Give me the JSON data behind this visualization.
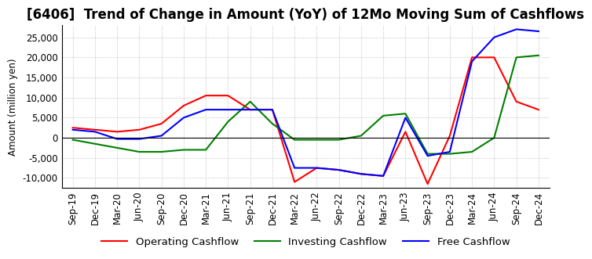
{
  "title": "[6406]  Trend of Change in Amount (YoY) of 12Mo Moving Sum of Cashflows",
  "ylabel": "Amount (million yen)",
  "x_labels": [
    "Sep-19",
    "Dec-19",
    "Mar-20",
    "Jun-20",
    "Sep-20",
    "Dec-20",
    "Mar-21",
    "Jun-21",
    "Sep-21",
    "Dec-21",
    "Mar-22",
    "Jun-22",
    "Sep-22",
    "Dec-22",
    "Mar-23",
    "Jun-23",
    "Sep-23",
    "Dec-23",
    "Mar-24",
    "Jun-24",
    "Sep-24",
    "Dec-24"
  ],
  "operating": [
    2500,
    2000,
    1500,
    2000,
    3500,
    8000,
    10500,
    10500,
    7000,
    7000,
    -11000,
    -7500,
    -8000,
    -9000,
    -9500,
    1500,
    -11500,
    500,
    20000,
    20000,
    9000,
    7000
  ],
  "investing": [
    -500,
    -1500,
    -2500,
    -3500,
    -3500,
    -3000,
    -3000,
    4000,
    9000,
    3500,
    -500,
    -500,
    -500,
    500,
    5500,
    6000,
    -4000,
    -4000,
    -3500,
    0,
    20000,
    20500
  ],
  "free": [
    2000,
    1500,
    -300,
    -300,
    500,
    5000,
    7000,
    7000,
    7000,
    7000,
    -7500,
    -7500,
    -8000,
    -9000,
    -9500,
    5000,
    -4500,
    -3500,
    19000,
    25000,
    27000,
    26500
  ],
  "ylim": [
    -12500,
    28000
  ],
  "yticks": [
    -10000,
    -5000,
    0,
    5000,
    10000,
    15000,
    20000,
    25000
  ],
  "operating_color": "#ff0000",
  "investing_color": "#008000",
  "free_color": "#0000ff",
  "background_color": "#ffffff",
  "grid_color": "#aaaaaa",
  "title_fontsize": 12,
  "axis_fontsize": 8.5,
  "legend_fontsize": 9.5
}
